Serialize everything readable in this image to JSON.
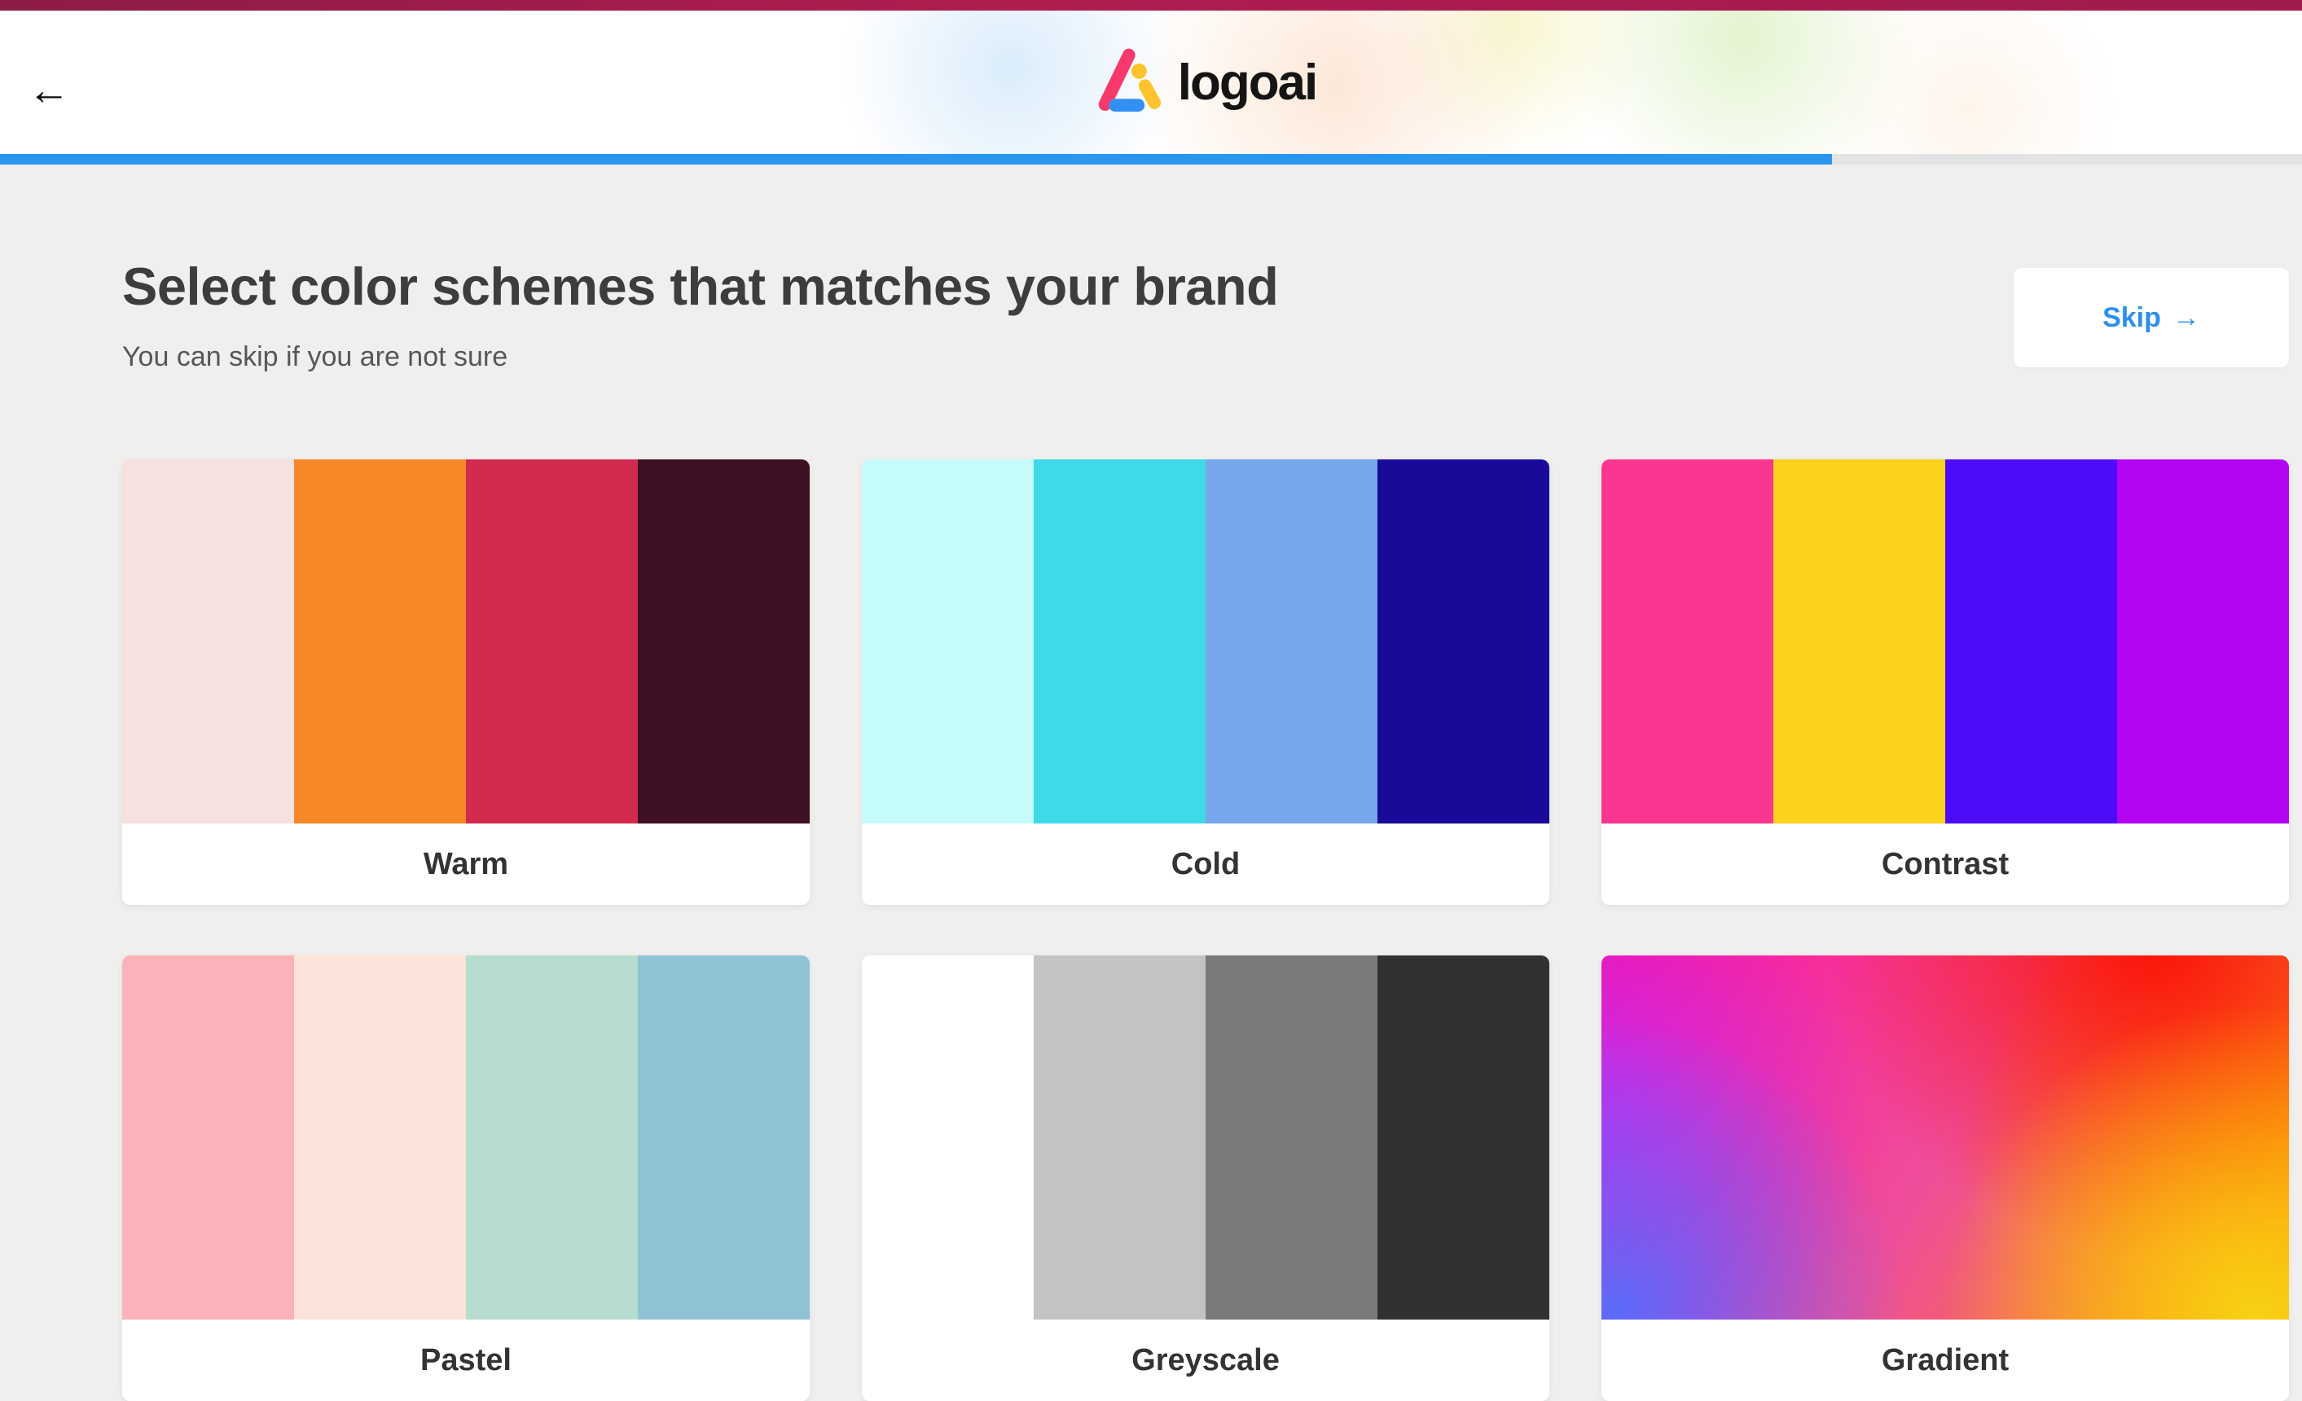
{
  "colors": {
    "topbar": "#a01b4e",
    "accent_blue": "#2997f0",
    "skip_blue": "#2e8feb",
    "page_bg": "#f0efee",
    "progress_track": "#e3e3e3",
    "heading": "#3d3d3d",
    "subtitle": "#575757",
    "card_label": "#333333",
    "logo_pink": "#f8396b",
    "logo_yellow": "#fcc32c",
    "logo_blue": "#338ff2"
  },
  "header": {
    "back_arrow": "←",
    "logo_text": "logoai",
    "progress_percent": 79.6
  },
  "hero": {
    "title": "Select color schemes that matches your brand",
    "subtitle": "You can skip if you are not sure",
    "skip_label": "Skip",
    "skip_arrow": "→"
  },
  "schemes": [
    {
      "label": "Warm",
      "colors": [
        "#f4e1e0",
        "#f78828",
        "#d22a4e",
        "#3f1023"
      ]
    },
    {
      "label": "Cold",
      "colors": [
        "#c5fbf8",
        "#40d9e8",
        "#77a7eb",
        "#1a0a99"
      ]
    },
    {
      "label": "Contrast",
      "colors": [
        "#fa3690",
        "#fdd21e",
        "#4c0cfa",
        "#b405f2"
      ]
    },
    {
      "label": "Pastel",
      "colors": [
        "#fcb2b8",
        "#fbe3d9",
        "#b6dccf",
        "#8ec3d3"
      ]
    },
    {
      "label": "Greyscale",
      "colors": [
        "#ffffff",
        "#c3c3c3",
        "#7a7a7a",
        "#313131"
      ]
    },
    {
      "label": "Gradient",
      "gradient": true,
      "gradient_colors": [
        "#ff0f9c",
        "#fb1205",
        "#fe8a00",
        "#f8d214",
        "#c02df8",
        "#5b6bfb"
      ]
    }
  ]
}
